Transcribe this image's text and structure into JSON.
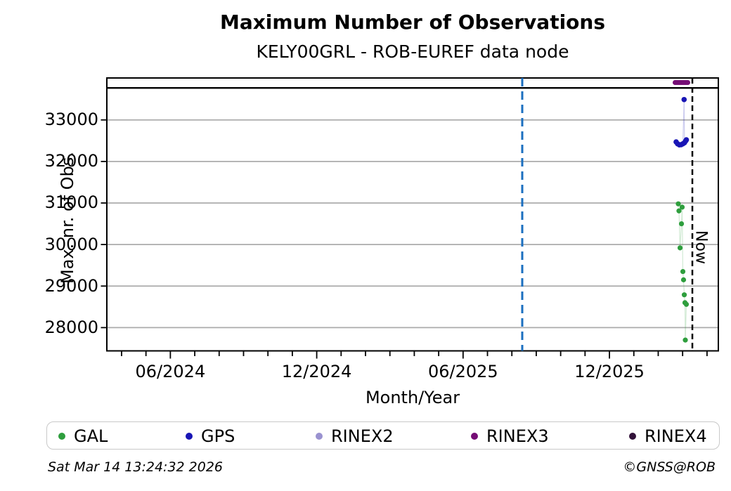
{
  "title": "Maximum Number of Observations",
  "subtitle": "KELY00GRL - ROB-EUREF data node",
  "footer": {
    "timestamp": "Sat Mar 14 13:24:32 2026",
    "credit": "©GNSS@ROB"
  },
  "chart_data": {
    "type": "scatter",
    "title": "Maximum Number of Observations",
    "subtitle": "KELY00GRL - ROB-EUREF data node",
    "xlabel": "Month/Year",
    "ylabel": "Max. nr. of Obs.",
    "x_note": "time axis ~Mar 2024 to ~Apr 2026; all data points cluster in Feb-Mar 2026 just before the Now line",
    "x_axis": {
      "label": "Month/Year",
      "minor_start_frac": 0.0241,
      "minor_step_frac": 0.03989,
      "minor_count": 25,
      "major_indices": [
        2,
        8,
        14,
        20
      ],
      "major_labels": [
        "06/2024",
        "12/2024",
        "06/2025",
        "12/2025"
      ]
    },
    "y_axis": {
      "label": "Max. nr. of Obs.",
      "ticks": [
        33000,
        32000,
        31000,
        30000,
        29000,
        28000
      ],
      "range": [
        27440,
        34010
      ],
      "grid": true,
      "grid_color": "#ababab"
    },
    "reference_lines": {
      "max_line": {
        "value": 33770,
        "color": "#000000",
        "style": "solid"
      },
      "event_line": {
        "x_frac": 0.6793,
        "color": "#1b6fc0",
        "style": "dashed"
      },
      "now_line": {
        "x_frac": 0.9575,
        "color": "#000000",
        "style": "dashed",
        "label": "Now"
      }
    },
    "series": [
      {
        "name": "GAL",
        "color": "#2e9e3d",
        "marker_r": 3.6,
        "points": [
          {
            "x_frac": 0.9345,
            "value": 30980
          },
          {
            "x_frac": 0.9356,
            "value": 30810
          },
          {
            "x_frac": 0.9374,
            "value": 29920
          },
          {
            "x_frac": 0.9397,
            "value": 30500
          },
          {
            "x_frac": 0.9408,
            "value": 30900
          },
          {
            "x_frac": 0.942,
            "value": 29350
          },
          {
            "x_frac": 0.9431,
            "value": 29150
          },
          {
            "x_frac": 0.9443,
            "value": 28790
          },
          {
            "x_frac": 0.9454,
            "value": 28600
          },
          {
            "x_frac": 0.946,
            "value": 27700
          },
          {
            "x_frac": 0.9477,
            "value": 28560
          }
        ]
      },
      {
        "name": "GPS",
        "color": "#1815b5",
        "marker_r": 3.8,
        "points": [
          {
            "x_frac": 0.931,
            "value": 32470
          },
          {
            "x_frac": 0.9333,
            "value": 32425
          },
          {
            "x_frac": 0.9362,
            "value": 32400
          },
          {
            "x_frac": 0.9391,
            "value": 32405
          },
          {
            "x_frac": 0.942,
            "value": 32425
          },
          {
            "x_frac": 0.944,
            "value": 33490
          },
          {
            "x_frac": 0.9446,
            "value": 32450
          },
          {
            "x_frac": 0.9466,
            "value": 32495
          },
          {
            "x_frac": 0.9477,
            "value": 32520
          }
        ]
      },
      {
        "name": "RINEX2",
        "color": "#9a92d0",
        "marker_r": 3.4,
        "points": []
      },
      {
        "name": "RINEX3",
        "color": "#750d75",
        "marker_r": 3.5,
        "points": [
          {
            "x_frac": 0.9293,
            "value": 33900
          },
          {
            "x_frac": 0.9316,
            "value": 33900
          },
          {
            "x_frac": 0.9339,
            "value": 33900
          },
          {
            "x_frac": 0.9362,
            "value": 33900
          },
          {
            "x_frac": 0.9385,
            "value": 33900
          },
          {
            "x_frac": 0.9408,
            "value": 33900
          },
          {
            "x_frac": 0.9431,
            "value": 33900
          },
          {
            "x_frac": 0.9454,
            "value": 33900
          },
          {
            "x_frac": 0.9477,
            "value": 33900
          },
          {
            "x_frac": 0.95,
            "value": 33900
          }
        ]
      },
      {
        "name": "RINEX4",
        "color": "#321239",
        "marker_r": 3.4,
        "points": []
      }
    ],
    "legend_position": "bottom"
  },
  "legend": {
    "items": [
      {
        "label": "GAL",
        "color": "#2e9e3d"
      },
      {
        "label": "GPS",
        "color": "#1815b5"
      },
      {
        "label": "RINEX2",
        "color": "#9a92d0"
      },
      {
        "label": "RINEX3",
        "color": "#750d75"
      },
      {
        "label": "RINEX4",
        "color": "#321239"
      }
    ]
  }
}
